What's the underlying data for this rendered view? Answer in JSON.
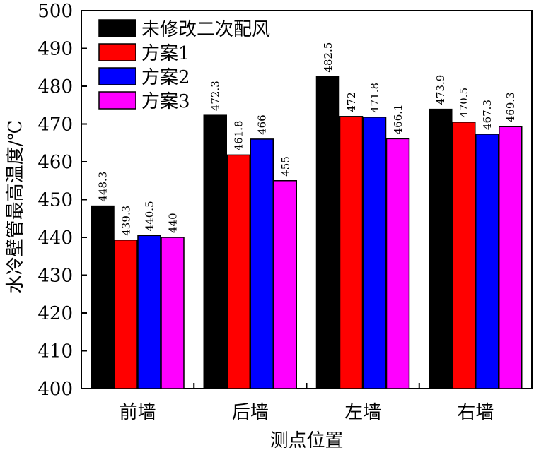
{
  "chart_data": {
    "type": "bar",
    "xlabel": "测点位置",
    "ylabel": "水冷壁管最高温度/℃",
    "ylim": [
      400,
      500
    ],
    "yticks": [
      400,
      410,
      420,
      430,
      440,
      450,
      460,
      470,
      480,
      490,
      500
    ],
    "grid": false,
    "legend_position": "top-left",
    "categories": [
      "前墙",
      "后墙",
      "左墙",
      "右墙"
    ],
    "series": [
      {
        "name": "未修改二次配风",
        "color": "#000000",
        "values": [
          448.3,
          472.3,
          482.5,
          473.9
        ],
        "labels": [
          "448.3",
          "472.3",
          "482.5",
          "473.9"
        ]
      },
      {
        "name": "方案1",
        "color": "#ff0000",
        "values": [
          439.3,
          461.8,
          472,
          470.5
        ],
        "labels": [
          "439.3",
          "461.8",
          "472",
          "470.5"
        ]
      },
      {
        "name": "方案2",
        "color": "#0000ff",
        "values": [
          440.5,
          466,
          471.8,
          467.3
        ],
        "labels": [
          "440.5",
          "466",
          "471.8",
          "467.3"
        ]
      },
      {
        "name": "方案3",
        "color": "#ff00ff",
        "values": [
          440,
          455,
          466.1,
          469.3
        ],
        "labels": [
          "440",
          "455",
          "466.1",
          "469.3"
        ]
      }
    ]
  }
}
